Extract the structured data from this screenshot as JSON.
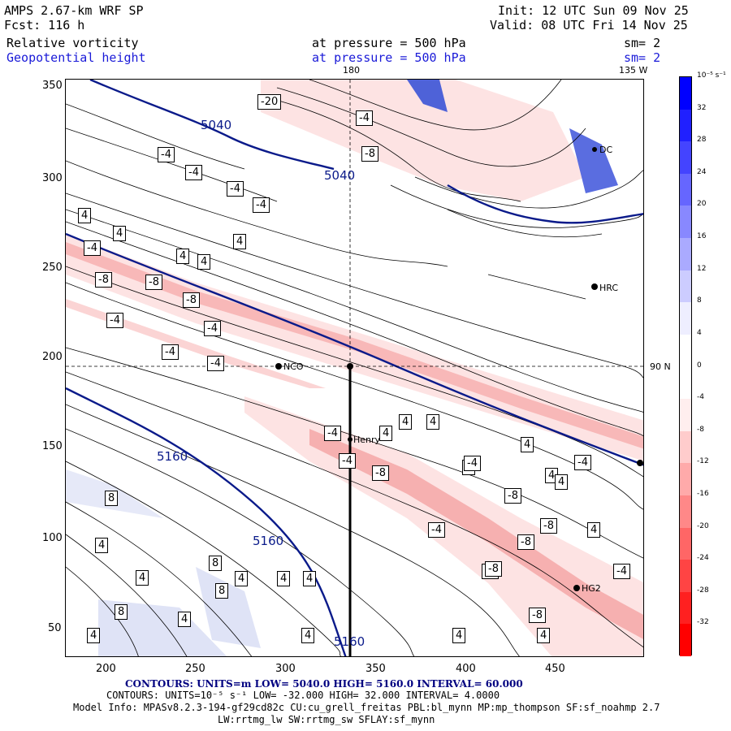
{
  "header": {
    "title_left": "AMPS 2.67-km WRF SP",
    "forecast": "Fcst:  116 h",
    "init": "Init: 12 UTC Sun 09 Nov 25",
    "valid": "Valid: 08 UTC Fri 14 Nov 25",
    "field1_name": "Relative vorticity",
    "field1_level": "at pressure =  500 hPa",
    "field1_sm": "sm= 2",
    "field2_name": "Geopotential height",
    "field2_level": "at pressure =  500 hPa",
    "field2_sm": "sm= 2"
  },
  "map": {
    "lon_label_180": "180",
    "lon_label_135w": "135 W",
    "lat_label_90n": "90 N",
    "x_ticks": [
      "200",
      "250",
      "300",
      "350",
      "400",
      "450"
    ],
    "y_ticks": [
      "350",
      "300",
      "250",
      "200",
      "150",
      "100",
      "50"
    ],
    "stations": [
      {
        "name": "NCO"
      },
      {
        "name": "Henry"
      },
      {
        "name": "HRC"
      },
      {
        "name": "HG2"
      },
      {
        "name": "DC"
      }
    ],
    "height_contour_labels": [
      "5040",
      "5040",
      "5160",
      "5160",
      "5160"
    ],
    "vorticity_labels": [
      "-20",
      "-4",
      "-8",
      "-4",
      "-4",
      "-4",
      "-4",
      "4",
      "4",
      "4",
      "4",
      "4",
      "-4",
      "-8",
      "-8",
      "-8",
      "-4",
      "-4",
      "-4",
      "-4",
      "-4",
      "4",
      "4",
      "4",
      "4",
      "4",
      "-4",
      "-8",
      "-4",
      "-8",
      "-4",
      "-8",
      "-8",
      "-4",
      "-8",
      "-8",
      "-8",
      "-4",
      "4",
      "4",
      "4",
      "8",
      "8",
      "8",
      "8",
      "4",
      "4",
      "4",
      "4",
      "4",
      "4",
      "4",
      "4",
      "4",
      "4"
    ]
  },
  "colorbar": {
    "unit_label": "10⁻⁵ s⁻¹",
    "levels": [
      "32",
      "28",
      "24",
      "20",
      "16",
      "12",
      "8",
      "4",
      "0",
      "-4",
      "-8",
      "-12",
      "-16",
      "-20",
      "-24",
      "-28",
      "-32"
    ],
    "colors_top_to_bottom": [
      "#0000ff",
      "#2020ff",
      "#4444ff",
      "#6666ff",
      "#8888ff",
      "#aaaaff",
      "#ccccff",
      "#eeeeff",
      "#ffffff",
      "#ffffff",
      "#ffeeee",
      "#ffcccc",
      "#ffaaaa",
      "#ff8888",
      "#ff6666",
      "#ff4444",
      "#ff2020",
      "#ff0000"
    ]
  },
  "footer": {
    "contours1": "CONTOURS:  UNITS=m  LOW=  5040.0          HIGH=  5160.0        INTERVAL=   60.000",
    "contours2": "CONTOURS:  UNITS=10⁻⁵ s⁻¹  LOW=  -32.000        HIGH=  32.000       INTERVAL=   4.0000",
    "model_info": "Model Info: MPASv8.2.3-194-gf29cd82c CU:cu_grell_freitas PBL:bl_mynn MP:mp_thompson SF:sf_noahmp 2.7",
    "model_info2": "LW:rrtmg_lw SW:rrtmg_sw SFLAY:sf_mynn"
  }
}
